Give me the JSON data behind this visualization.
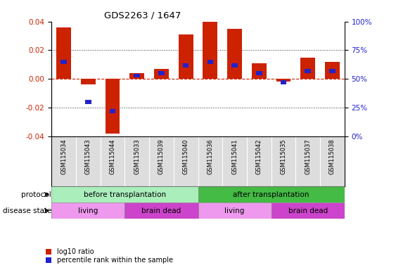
{
  "title": "GDS2263 / 1647",
  "samples": [
    "GSM115034",
    "GSM115043",
    "GSM115044",
    "GSM115033",
    "GSM115039",
    "GSM115040",
    "GSM115036",
    "GSM115041",
    "GSM115042",
    "GSM115035",
    "GSM115037",
    "GSM115038"
  ],
  "log10_ratio": [
    0.036,
    -0.004,
    -0.038,
    0.004,
    0.007,
    0.031,
    0.04,
    0.035,
    0.011,
    -0.002,
    0.015,
    0.012
  ],
  "percentile_rank": [
    65,
    30,
    22,
    53,
    55,
    62,
    65,
    62,
    55,
    47,
    57,
    57
  ],
  "ylim": [
    -0.04,
    0.04
  ],
  "yticks_left": [
    -0.04,
    -0.02,
    0.0,
    0.02,
    0.04
  ],
  "yticks_right_vals": [
    0,
    25,
    50,
    75,
    100
  ],
  "bar_color": "#cc2200",
  "blue_color": "#2222cc",
  "dotted_color": "#333333",
  "dashed_zero_color": "#cc2200",
  "tick_bg_color": "#dddddd",
  "protocol_before_color": "#aaeebb",
  "protocol_after_color": "#44bb44",
  "disease_living_color": "#ee99ee",
  "disease_dead_color": "#cc44cc",
  "protocol_label": "protocol",
  "disease_label": "disease state",
  "before_text": "before transplantation",
  "after_text": "after transplantation",
  "living_text": "living",
  "brain_dead_text": "brain dead",
  "legend_red": "log10 ratio",
  "legend_blue": "percentile rank within the sample",
  "n_before": 6,
  "n_living1": 3,
  "n_dead1": 3,
  "n_living2": 3,
  "n_dead2": 3
}
